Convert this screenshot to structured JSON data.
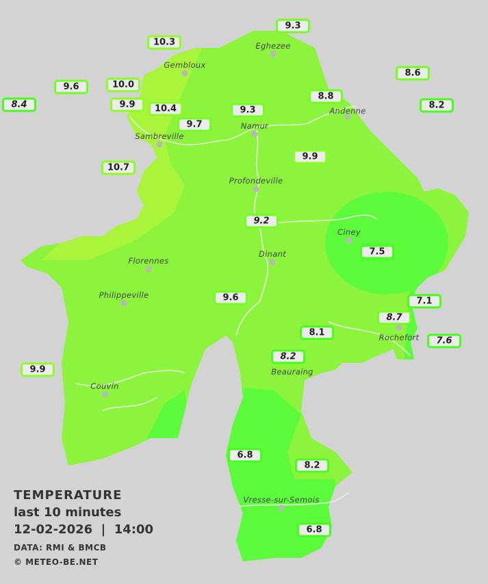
{
  "legend": {
    "title": "TEMPERATURE",
    "period": "last 10 minutes",
    "datetime": "12-02-2026  |  14:00",
    "source": "DATA: RMI & BMCB",
    "copyright": "© METEO-BE.NET"
  },
  "colors": {
    "background": "#d3d3d3",
    "zone_warm": "#a8f53c",
    "zone_mild": "#8cf43c",
    "zone_cool": "#5cfc3c",
    "rivers": "#e6f5e0"
  },
  "cities": [
    "Eghezee",
    "Gembloux",
    "Andenne",
    "Namur",
    "Sambreville",
    "Profondeville",
    "Ciney",
    "Dinant",
    "Florennes",
    "Philippeville",
    "Rochefort",
    "Beauraing",
    "Couvin",
    "Vresse-sur-Semois"
  ],
  "stations": [
    {
      "value": "10.3",
      "italic": false
    },
    {
      "value": "9.3",
      "italic": false
    },
    {
      "value": "8.6",
      "italic": false
    },
    {
      "value": "9.6",
      "italic": false
    },
    {
      "value": "10.0",
      "italic": false
    },
    {
      "value": "8.4",
      "italic": true
    },
    {
      "value": "9.9",
      "italic": false
    },
    {
      "value": "10.4",
      "italic": false
    },
    {
      "value": "9.7",
      "italic": false
    },
    {
      "value": "9.3",
      "italic": false
    },
    {
      "value": "8.8",
      "italic": false
    },
    {
      "value": "8.2",
      "italic": false
    },
    {
      "value": "9.9",
      "italic": false
    },
    {
      "value": "10.7",
      "italic": false
    },
    {
      "value": "9.2",
      "italic": true
    },
    {
      "value": "7.5",
      "italic": false
    },
    {
      "value": "9.6",
      "italic": false
    },
    {
      "value": "7.1",
      "italic": false
    },
    {
      "value": "8.7",
      "italic": true
    },
    {
      "value": "8.1",
      "italic": false
    },
    {
      "value": "7.6",
      "italic": true
    },
    {
      "value": "8.2",
      "italic": true
    },
    {
      "value": "9.9",
      "italic": false
    },
    {
      "value": "6.8",
      "italic": false
    },
    {
      "value": "8.2",
      "italic": false
    },
    {
      "value": "6.8",
      "italic": false
    }
  ]
}
